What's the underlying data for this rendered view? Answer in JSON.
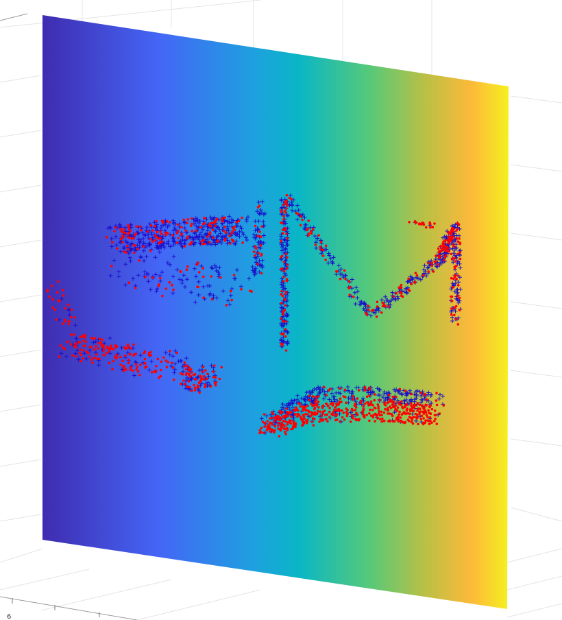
{
  "tick_labels": [
    "6"
  ]
}
